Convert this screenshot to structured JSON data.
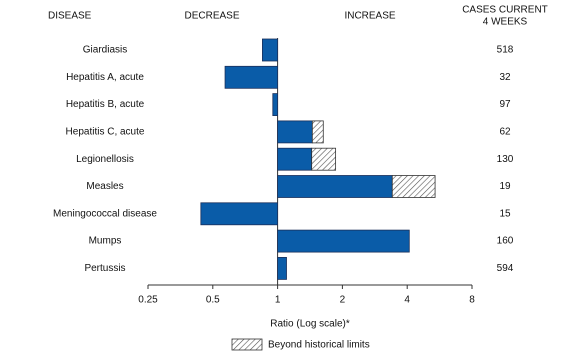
{
  "chart_data": {
    "type": "bar",
    "orientation": "horizontal",
    "log_scale": true,
    "headers": {
      "category": "DISEASE",
      "decrease": "DECREASE",
      "increase": "INCREASE",
      "cases": [
        "CASES CURRENT",
        "4 WEEKS"
      ]
    },
    "categories": [
      "Giardiasis",
      "Hepatitis A, acute",
      "Hepatitis B, acute",
      "Hepatitis C, acute",
      "Legionellosis",
      "Measles",
      "Meningococcal disease",
      "Mumps",
      "Pertussis"
    ],
    "values": [
      0.85,
      0.57,
      0.95,
      1.63,
      1.86,
      5.39,
      0.44,
      4.09,
      1.1
    ],
    "historical_limits": [
      null,
      null,
      null,
      1.45,
      1.44,
      3.41,
      null,
      null,
      null
    ],
    "cases": [
      518,
      32,
      97,
      62,
      130,
      19,
      15,
      160,
      594
    ],
    "color": "#0a5ca8",
    "beyond_name": "Beyond historical limits",
    "xlabel": "Ratio (Log scale)*",
    "xlim": [
      0.25,
      8
    ],
    "xticks": [
      0.25,
      0.5,
      1,
      2,
      4,
      8
    ]
  }
}
